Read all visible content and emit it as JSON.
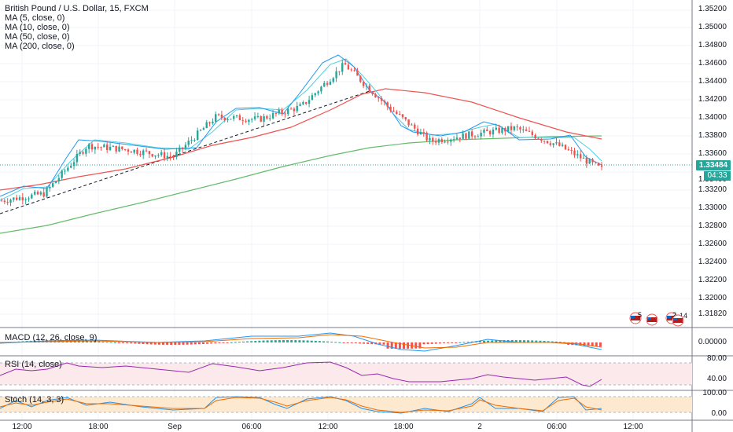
{
  "legend": {
    "title": "British Pound / U.S. Dollar, 15, FXCM",
    "ma_lines": [
      "MA (5, close, 0)",
      "MA (10, close, 0)",
      "MA (50, close, 0)",
      "MA (200, close, 0)"
    ]
  },
  "panes": {
    "macd_label": "MACD (12, 26, close, 9)",
    "rsi_label": "RSI (14, close)",
    "stoch_label": "Stoch (14, 3, 3)"
  },
  "price_axis": {
    "ticks": [
      "1.35200",
      "1.35000",
      "1.34800",
      "1.34600",
      "1.34400",
      "1.34200",
      "1.34000",
      "1.33800",
      "1.33600",
      "1.33400",
      "1.33200",
      "1.33000",
      "1.32800",
      "1.32600",
      "1.32400",
      "1.32200",
      "1.32000",
      "1.31820"
    ],
    "current_price": "1.33484",
    "countdown": "04:33"
  },
  "macd_axis": {
    "ticks": [
      "0.00000"
    ]
  },
  "rsi_axis": {
    "ticks": [
      "80.00",
      "40.00"
    ]
  },
  "stoch_axis": {
    "ticks": [
      "100.00",
      "0.00"
    ]
  },
  "time_axis": {
    "ticks": [
      "12:00",
      "18:00",
      "Sep",
      "06:00",
      "12:00",
      "18:00",
      "2",
      "06:00",
      "12:00"
    ]
  },
  "events": [
    {
      "count": "5"
    },
    {
      "count": "2"
    },
    {
      "count": "14"
    }
  ],
  "colors": {
    "up": "#26a69a",
    "down": "#ef5350",
    "ma5": "#2196f3",
    "ma10": "#4dd0e1",
    "ma50": "#ef5350",
    "ma200": "#66bb6a",
    "rsi": "#9c27b0",
    "stoch_k": "#2196f3",
    "stoch_d": "#ef6c00"
  },
  "chart_data": {
    "type": "line",
    "symbol": "British Pound / U.S. Dollar",
    "timeframe": "15",
    "ylim": [
      1.3182,
      1.353
    ],
    "series": [
      {
        "name": "MA (50, close, 0)",
        "values": [
          1.3318,
          1.3325,
          1.334,
          1.336,
          1.338,
          1.34,
          1.342,
          1.3434,
          1.343,
          1.342,
          1.3405,
          1.3388,
          1.3377
        ]
      },
      {
        "name": "MA (200, close, 0)",
        "values": [
          1.3275,
          1.329,
          1.331,
          1.333,
          1.335,
          1.337,
          1.3365,
          1.3375,
          1.3378,
          1.338,
          1.3383,
          1.3385,
          1.3385
        ]
      }
    ],
    "approx_close": [
      1.3312,
      1.332,
      1.3375,
      1.337,
      1.3362,
      1.3408,
      1.3405,
      1.342,
      1.3468,
      1.342,
      1.338,
      1.3388,
      1.3395,
      1.3375,
      1.3348
    ]
  }
}
